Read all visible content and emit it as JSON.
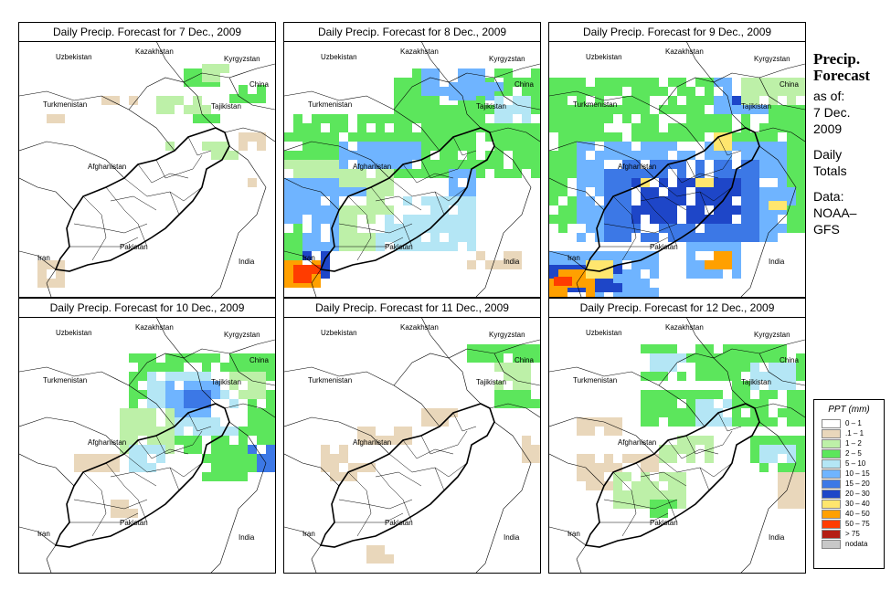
{
  "panels": [
    {
      "title": "Daily Precip. Forecast for  7 Dec., 2009",
      "intensity": 0
    },
    {
      "title": "Daily Precip. Forecast for  8 Dec., 2009",
      "intensity": 1
    },
    {
      "title": "Daily Precip. Forecast for  9 Dec., 2009",
      "intensity": 2
    },
    {
      "title": "Daily Precip. Forecast for  10 Dec., 2009",
      "intensity": 3
    },
    {
      "title": "Daily Precip. Forecast for  11 Dec., 2009",
      "intensity": 4
    },
    {
      "title": "Daily Precip. Forecast for  12 Dec., 2009",
      "intensity": 5
    }
  ],
  "country_labels": {
    "uzbekistan": "Uzbekistan",
    "kazakhstan": "Kazakhstan",
    "kyrgyzstan": "Kyrgyzstan",
    "china": "China",
    "turkmenistan": "Turkmenistan",
    "tajikistan": "Tajikistan",
    "afghanistan": "Afghanistan",
    "pakistan": "Pakistan",
    "iran": "Iran",
    "india": "India"
  },
  "sidebar": {
    "title_line1": "Precip.",
    "title_line2": "Forecast",
    "asof_line1": "as of:",
    "asof_line2": "7 Dec.",
    "asof_line3": "2009",
    "daily_line1": "Daily",
    "daily_line2": "Totals",
    "data_line1": "Data:",
    "data_line2": "NOAA–",
    "data_line3": "GFS"
  },
  "legend": {
    "title": "PPT (mm)",
    "items": [
      {
        "label": "0 – 1",
        "color": "#ffffff"
      },
      {
        "label": ".1 – 1",
        "color": "#e9d7bb"
      },
      {
        "label": "1 – 2",
        "color": "#bdf0a8"
      },
      {
        "label": "2 – 5",
        "color": "#5ce65c"
      },
      {
        "label": "5 – 10",
        "color": "#b4e6f5"
      },
      {
        "label": "10 – 15",
        "color": "#6fb4ff"
      },
      {
        "label": "15 – 20",
        "color": "#3c78e6"
      },
      {
        "label": "20 – 30",
        "color": "#1e46c8"
      },
      {
        "label": "30 – 40",
        "color": "#ffe66e"
      },
      {
        "label": "40 – 50",
        "color": "#ffa000"
      },
      {
        "label": "50 – 75",
        "color": "#ff3c00"
      },
      {
        "label": "> 75",
        "color": "#b41e14"
      },
      {
        "label": "nodata",
        "color": "#c8c8c8"
      }
    ]
  }
}
